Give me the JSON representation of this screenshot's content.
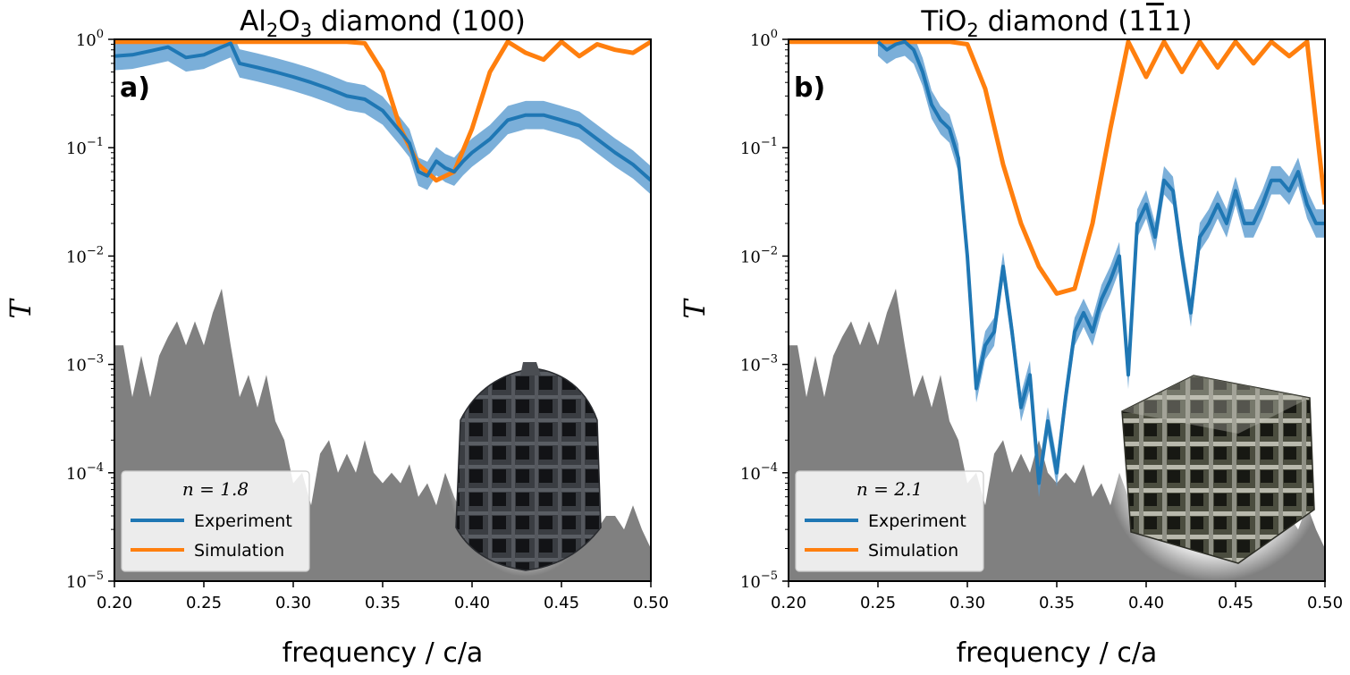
{
  "chart_data": [
    {
      "type": "line",
      "panel_label": "a)",
      "title": {
        "prefix": "Al",
        "sub1": "2",
        "mid": "O",
        "sub2": "3",
        "suffix": " diamond (100)"
      },
      "xlabel": "frequency / c/a",
      "ylabel": "T",
      "yscale": "log",
      "xlim": [
        0.2,
        0.5
      ],
      "ylim": [
        1e-05,
        1
      ],
      "xticks": [
        "0.20",
        "0.25",
        "0.30",
        "0.35",
        "0.40",
        "0.45",
        "0.50"
      ],
      "yticks": [
        {
          "base": "10",
          "exp": "0"
        },
        {
          "base": "10",
          "exp": "−1"
        },
        {
          "base": "10",
          "exp": "−2"
        },
        {
          "base": "10",
          "exp": "−3"
        },
        {
          "base": "10",
          "exp": "−4"
        },
        {
          "base": "10",
          "exp": "−5"
        }
      ],
      "legend": {
        "title": "n = 1.8",
        "position": "lower-left"
      },
      "colors": {
        "experiment": "#1f77b4",
        "band": "#5a9bd0",
        "simulation": "#ff7f0e",
        "background": "#808080"
      },
      "series": [
        {
          "name": "Experiment",
          "x": [
            0.2,
            0.21,
            0.22,
            0.23,
            0.24,
            0.25,
            0.26,
            0.265,
            0.27,
            0.28,
            0.29,
            0.3,
            0.31,
            0.32,
            0.33,
            0.34,
            0.35,
            0.36,
            0.365,
            0.37,
            0.375,
            0.38,
            0.385,
            0.39,
            0.395,
            0.4,
            0.41,
            0.42,
            0.43,
            0.44,
            0.45,
            0.46,
            0.47,
            0.48,
            0.49,
            0.5
          ],
          "y": [
            0.7,
            0.72,
            0.78,
            0.85,
            0.68,
            0.72,
            0.85,
            0.92,
            0.6,
            0.55,
            0.5,
            0.45,
            0.4,
            0.35,
            0.3,
            0.28,
            0.22,
            0.14,
            0.11,
            0.06,
            0.055,
            0.075,
            0.065,
            0.06,
            0.075,
            0.09,
            0.12,
            0.18,
            0.2,
            0.2,
            0.18,
            0.16,
            0.12,
            0.09,
            0.07,
            0.05
          ]
        },
        {
          "name": "Simulation",
          "x": [
            0.2,
            0.25,
            0.3,
            0.33,
            0.34,
            0.35,
            0.36,
            0.37,
            0.38,
            0.39,
            0.4,
            0.41,
            0.42,
            0.43,
            0.44,
            0.45,
            0.46,
            0.47,
            0.48,
            0.49,
            0.5
          ],
          "y": [
            0.95,
            0.95,
            0.95,
            0.95,
            0.92,
            0.5,
            0.15,
            0.07,
            0.05,
            0.06,
            0.15,
            0.5,
            0.95,
            0.75,
            0.65,
            0.95,
            0.7,
            0.9,
            0.8,
            0.75,
            0.95
          ]
        },
        {
          "name": "",
          "x": [
            0.2,
            0.205,
            0.21,
            0.215,
            0.22,
            0.225,
            0.23,
            0.235,
            0.24,
            0.245,
            0.25,
            0.255,
            0.26,
            0.265,
            0.27,
            0.275,
            0.28,
            0.285,
            0.29,
            0.295,
            0.3,
            0.305,
            0.31,
            0.315,
            0.32,
            0.325,
            0.33,
            0.335,
            0.34,
            0.345,
            0.35,
            0.355,
            0.36,
            0.365,
            0.37,
            0.375,
            0.38,
            0.385,
            0.39,
            0.395,
            0.4,
            0.405,
            0.41,
            0.415,
            0.42,
            0.425,
            0.43,
            0.435,
            0.44,
            0.445,
            0.45,
            0.455,
            0.46,
            0.465,
            0.47,
            0.475,
            0.48,
            0.485,
            0.49,
            0.495,
            0.5
          ],
          "y": [
            0.0015,
            0.0015,
            0.0005,
            0.0012,
            0.0005,
            0.0012,
            0.0018,
            0.0025,
            0.0015,
            0.0025,
            0.0015,
            0.003,
            0.005,
            0.0015,
            0.0005,
            0.0008,
            0.0004,
            0.0008,
            0.0003,
            0.0002,
            8e-05,
            0.0001,
            5e-05,
            0.00015,
            0.0002,
            0.0001,
            0.00015,
            0.0001,
            0.0002,
            0.0001,
            8e-05,
            0.0001,
            8e-05,
            0.00012,
            6e-05,
            8e-05,
            5e-05,
            0.0001,
            6e-05,
            4e-05,
            8e-05,
            6e-05,
            0.00012,
            8e-05,
            0.0001,
            6e-05,
            9e-05,
            0.0002,
            0.0001,
            5e-05,
            7e-05,
            4e-05,
            6e-05,
            5e-05,
            3e-05,
            4e-05,
            4e-05,
            3e-05,
            5e-05,
            3e-05,
            2e-05
          ]
        }
      ]
    },
    {
      "type": "line",
      "panel_label": "b)",
      "title": {
        "prefix": "TiO",
        "sub1": "2",
        "mid": "",
        "sub2": "",
        "suffix": " diamond (1",
        "bar": "1",
        "end": "1)"
      },
      "xlabel": "frequency / c/a",
      "ylabel": "T",
      "yscale": "log",
      "xlim": [
        0.2,
        0.5
      ],
      "ylim": [
        1e-05,
        1
      ],
      "xticks": [
        "0.20",
        "0.25",
        "0.30",
        "0.35",
        "0.40",
        "0.45",
        "0.50"
      ],
      "yticks": [
        {
          "base": "10",
          "exp": "0"
        },
        {
          "base": "10",
          "exp": "−1"
        },
        {
          "base": "10",
          "exp": "−2"
        },
        {
          "base": "10",
          "exp": "−3"
        },
        {
          "base": "10",
          "exp": "−4"
        },
        {
          "base": "10",
          "exp": "−5"
        }
      ],
      "legend": {
        "title": "n = 2.1",
        "position": "lower-left"
      },
      "colors": {
        "experiment": "#1f77b4",
        "band": "#5a9bd0",
        "simulation": "#ff7f0e",
        "background": "#808080"
      },
      "series": [
        {
          "name": "Experiment",
          "x": [
            0.25,
            0.255,
            0.26,
            0.265,
            0.27,
            0.275,
            0.28,
            0.285,
            0.29,
            0.295,
            0.3,
            0.305,
            0.31,
            0.315,
            0.32,
            0.325,
            0.33,
            0.335,
            0.34,
            0.345,
            0.35,
            0.355,
            0.36,
            0.365,
            0.37,
            0.375,
            0.38,
            0.385,
            0.39,
            0.395,
            0.4,
            0.405,
            0.41,
            0.415,
            0.42,
            0.425,
            0.43,
            0.435,
            0.44,
            0.445,
            0.45,
            0.455,
            0.46,
            0.465,
            0.47,
            0.475,
            0.48,
            0.485,
            0.49,
            0.495,
            0.5
          ],
          "y": [
            0.95,
            0.8,
            0.9,
            0.95,
            0.8,
            0.5,
            0.25,
            0.18,
            0.15,
            0.08,
            0.01,
            0.0006,
            0.0015,
            0.002,
            0.008,
            0.002,
            0.0004,
            0.0008,
            8e-05,
            0.0003,
            0.0001,
            0.0005,
            0.002,
            0.003,
            0.002,
            0.004,
            0.006,
            0.01,
            0.0008,
            0.02,
            0.03,
            0.015,
            0.05,
            0.04,
            0.01,
            0.003,
            0.015,
            0.02,
            0.03,
            0.02,
            0.04,
            0.02,
            0.02,
            0.03,
            0.05,
            0.05,
            0.04,
            0.06,
            0.03,
            0.02,
            0.02
          ]
        },
        {
          "name": "Simulation",
          "x": [
            0.2,
            0.25,
            0.29,
            0.3,
            0.31,
            0.32,
            0.33,
            0.34,
            0.35,
            0.36,
            0.37,
            0.38,
            0.39,
            0.4,
            0.41,
            0.42,
            0.43,
            0.44,
            0.45,
            0.46,
            0.47,
            0.48,
            0.49,
            0.5
          ],
          "y": [
            0.95,
            0.95,
            0.95,
            0.9,
            0.35,
            0.07,
            0.02,
            0.008,
            0.0045,
            0.005,
            0.02,
            0.15,
            0.95,
            0.45,
            0.95,
            0.5,
            0.95,
            0.55,
            0.95,
            0.6,
            0.95,
            0.7,
            0.95,
            0.03
          ]
        },
        {
          "name": "",
          "x": [
            0.2,
            0.205,
            0.21,
            0.215,
            0.22,
            0.225,
            0.23,
            0.235,
            0.24,
            0.245,
            0.25,
            0.255,
            0.26,
            0.265,
            0.27,
            0.275,
            0.28,
            0.285,
            0.29,
            0.295,
            0.3,
            0.305,
            0.31,
            0.315,
            0.32,
            0.325,
            0.33,
            0.335,
            0.34,
            0.345,
            0.35,
            0.355,
            0.36,
            0.365,
            0.37,
            0.375,
            0.38,
            0.385,
            0.39,
            0.395,
            0.4,
            0.405,
            0.41,
            0.415,
            0.42,
            0.425,
            0.43,
            0.435,
            0.44,
            0.445,
            0.45,
            0.455,
            0.46,
            0.465,
            0.47,
            0.475,
            0.48,
            0.485,
            0.49,
            0.495,
            0.5
          ],
          "y": [
            0.0015,
            0.0015,
            0.0005,
            0.0012,
            0.0005,
            0.0012,
            0.0018,
            0.0025,
            0.0015,
            0.0025,
            0.0015,
            0.003,
            0.005,
            0.0015,
            0.0005,
            0.0008,
            0.0004,
            0.0008,
            0.0003,
            0.0002,
            8e-05,
            0.0001,
            5e-05,
            0.00015,
            0.0002,
            0.0001,
            0.00015,
            0.0001,
            0.0002,
            0.0001,
            8e-05,
            0.0001,
            8e-05,
            0.00012,
            6e-05,
            8e-05,
            5e-05,
            0.0001,
            6e-05,
            4e-05,
            8e-05,
            6e-05,
            0.00012,
            8e-05,
            0.0001,
            6e-05,
            9e-05,
            0.0002,
            0.0001,
            5e-05,
            7e-05,
            4e-05,
            6e-05,
            5e-05,
            3e-05,
            4e-05,
            4e-05,
            3e-05,
            5e-05,
            3e-05,
            2e-05
          ]
        }
      ]
    }
  ]
}
